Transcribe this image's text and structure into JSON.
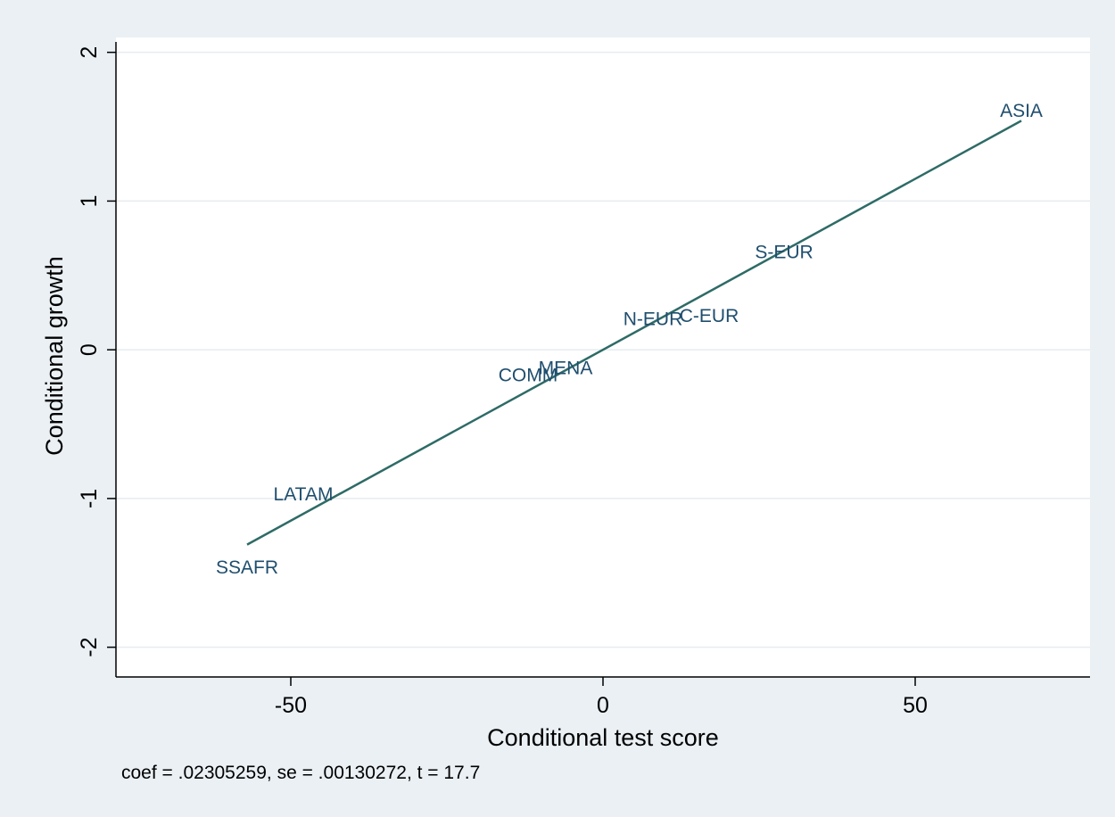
{
  "chart_data": {
    "type": "scatter",
    "xlabel": "Conditional test score",
    "ylabel": "Conditional growth",
    "xlim": [
      -78,
      78
    ],
    "ylim": [
      -2.2,
      2.1
    ],
    "xticks": [
      -50,
      0,
      50
    ],
    "yticks": [
      -2,
      -1,
      0,
      1,
      2
    ],
    "grid": "horizontal",
    "points": [
      {
        "label": "ASIA",
        "x": 67,
        "y": 1.6
      },
      {
        "label": "S-EUR",
        "x": 29,
        "y": 0.65
      },
      {
        "label": "C-EUR",
        "x": 17,
        "y": 0.22
      },
      {
        "label": "N-EUR",
        "x": 8,
        "y": 0.2
      },
      {
        "label": "MENA",
        "x": -6,
        "y": -0.13
      },
      {
        "label": "COMM",
        "x": -12,
        "y": -0.18
      },
      {
        "label": "LATAM",
        "x": -48,
        "y": -0.98
      },
      {
        "label": "SSAFR",
        "x": -57,
        "y": -1.47
      }
    ],
    "fit_line": {
      "x": [
        -57,
        67
      ],
      "y": [
        -1.31,
        1.54
      ]
    },
    "note": "coef = .02305259, se = .00130272, t = 17.7",
    "colors": {
      "line": "#2e6b66",
      "labels": "#1f4e6e",
      "background": "#eaf0f4",
      "plot": "#ffffff",
      "grid": "#e6ecf0"
    }
  }
}
